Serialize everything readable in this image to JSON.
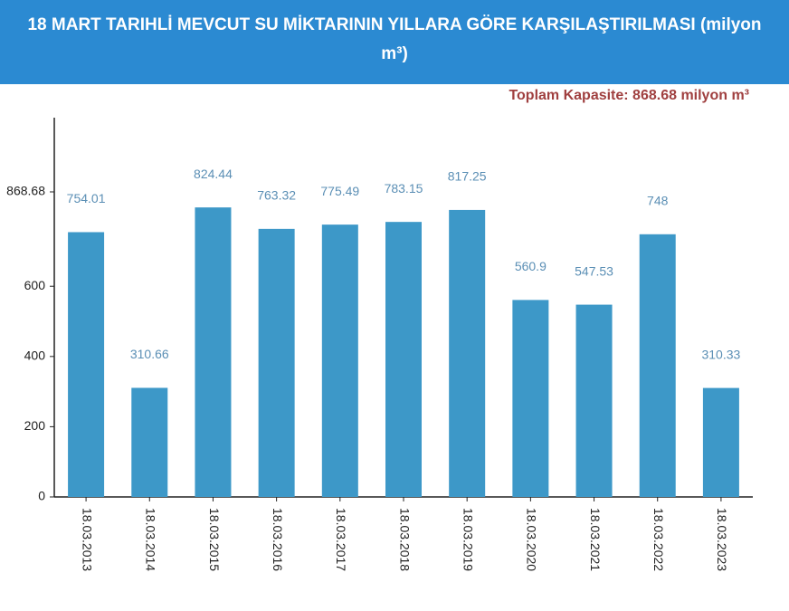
{
  "chart_data": {
    "type": "bar",
    "title": "18 MART TARIHLİ MEVCUT SU MİKTARININ YILLARA GÖRE KARŞILAŞTIRILMASI (milyon m³)",
    "subtitle": "Toplam Kapasite: 868.68 milyon m³",
    "categories": [
      "18.03.2013",
      "18.03.2014",
      "18.03.2015",
      "18.03.2016",
      "18.03.2017",
      "18.03.2018",
      "18.03.2019",
      "18.03.2020",
      "18.03.2021",
      "18.03.2022",
      "18.03.2023"
    ],
    "values": [
      754.01,
      310.66,
      824.44,
      763.32,
      775.49,
      783.15,
      817.25,
      560.9,
      547.53,
      748,
      310.33
    ],
    "color": "#3d98c8",
    "ylim": [
      0,
      1080
    ],
    "yticks": [
      0,
      200,
      400,
      600,
      868.68
    ]
  }
}
